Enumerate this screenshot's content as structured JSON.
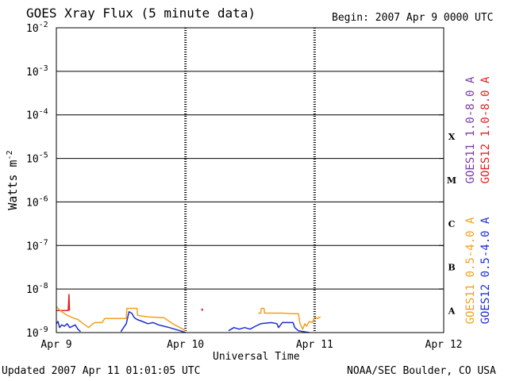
{
  "header": {
    "title": "GOES Xray Flux (5 minute data)",
    "begin": "Begin:  2007 Apr 9 0000 UTC"
  },
  "footer": {
    "updated": "Updated 2007 Apr 11 01:01:05 UTC",
    "credit": "NOAA/SEC Boulder, CO USA"
  },
  "colors": {
    "goes11_long": "#7a3aa8",
    "goes12_long": "#e02020",
    "goes11_short": "#f0a020",
    "goes12_short": "#1c2ed0",
    "frame": "#000000"
  },
  "chart_data": {
    "type": "line",
    "title": "GOES Xray Flux (5 minute data)",
    "xlabel": "Universal Time",
    "ylabel": "Watts m",
    "ylabel_sup": "-2",
    "yscale": "log",
    "ylim": [
      1e-09,
      0.01
    ],
    "xlim": [
      0,
      72
    ],
    "x_unit": "hours since 2007 Apr 9 0000 UTC",
    "x_ticks": [
      {
        "x": 0,
        "label": "Apr 9"
      },
      {
        "x": 24,
        "label": "Apr 10"
      },
      {
        "x": 48,
        "label": "Apr 11"
      },
      {
        "x": 72,
        "label": "Apr 12"
      }
    ],
    "y_ticks": [
      {
        "exp": -2,
        "label": "10",
        "sup": "-2"
      },
      {
        "exp": -3,
        "label": "10",
        "sup": "-3"
      },
      {
        "exp": -4,
        "label": "10",
        "sup": "-4"
      },
      {
        "exp": -5,
        "label": "10",
        "sup": "-5"
      },
      {
        "exp": -6,
        "label": "10",
        "sup": "-6"
      },
      {
        "exp": -7,
        "label": "10",
        "sup": "-7"
      },
      {
        "exp": -8,
        "label": "10",
        "sup": "-8"
      },
      {
        "exp": -9,
        "label": "10",
        "sup": "-9"
      }
    ],
    "flare_classes": [
      {
        "label": "X",
        "exp": -4
      },
      {
        "label": "M",
        "exp": -5
      },
      {
        "label": "C",
        "exp": -6
      },
      {
        "label": "B",
        "exp": -7
      },
      {
        "label": "A",
        "exp": -8
      }
    ],
    "grid": "horizontal lines at each decade; dotted vertical lines at day boundaries",
    "series": [
      {
        "name": "GOES11 1.0-8.0 A",
        "color": "#7a3aa8",
        "points": []
      },
      {
        "name": "GOES12 1.0-8.0 A",
        "color": "#e02020",
        "points": [
          [
            0,
            3.2e-09
          ],
          [
            2.2,
            3.2e-09
          ],
          [
            2.35,
            7.5e-09
          ],
          [
            2.45,
            3.2e-09
          ],
          [
            27,
            3.2e-09
          ],
          [
            27.1,
            3.5e-09
          ],
          [
            27.2,
            3.2e-09
          ],
          [
            49.1,
            3.2e-09
          ]
        ]
      },
      {
        "name": "GOES11 0.5-4.0 A",
        "color": "#f0a020",
        "points": [
          [
            0,
            4e-09
          ],
          [
            0.4,
            3.5e-09
          ],
          [
            1.0,
            3e-09
          ],
          [
            2.0,
            2.5e-09
          ],
          [
            3.0,
            2.2e-09
          ],
          [
            4.0,
            2e-09
          ],
          [
            5.0,
            1.6e-09
          ],
          [
            6.0,
            1.3e-09
          ],
          [
            6.8,
            1.6e-09
          ],
          [
            7.2,
            1.7e-09
          ],
          [
            8.5,
            1.7e-09
          ],
          [
            9.0,
            2.1e-09
          ],
          [
            13.0,
            2.1e-09
          ],
          [
            13.1,
            3.6e-09
          ],
          [
            15.0,
            3.6e-09
          ],
          [
            15.1,
            2.5e-09
          ],
          [
            17.0,
            2.3e-09
          ],
          [
            20.0,
            2.2e-09
          ],
          [
            21.0,
            1.8e-09
          ],
          [
            22.0,
            1.5e-09
          ],
          [
            23.0,
            1.3e-09
          ],
          [
            24.0,
            1.1e-09
          ],
          [
            37.5,
            2.8e-09
          ],
          [
            38.0,
            2.8e-09
          ],
          [
            38.1,
            3.6e-09
          ],
          [
            38.6,
            3.6e-09
          ],
          [
            38.7,
            2.8e-09
          ],
          [
            42.0,
            2.8e-09
          ],
          [
            44.0,
            2.7e-09
          ],
          [
            45.0,
            2.7e-09
          ],
          [
            45.3,
            1.6e-09
          ],
          [
            45.8,
            1.2e-09
          ],
          [
            46.2,
            1.6e-09
          ],
          [
            46.5,
            1.4e-09
          ],
          [
            47.0,
            1.8e-09
          ],
          [
            47.6,
            1.7e-09
          ],
          [
            48.0,
            2.3e-09
          ],
          [
            48.5,
            2.1e-09
          ],
          [
            49.1,
            2.3e-09
          ]
        ]
      },
      {
        "name": "GOES12 0.5-4.0 A",
        "color": "#1c2ed0",
        "points": [
          [
            0,
            1.6e-09
          ],
          [
            0.3,
            1.8e-09
          ],
          [
            0.6,
            1.3e-09
          ],
          [
            1.0,
            1.5e-09
          ],
          [
            1.5,
            1.4e-09
          ],
          [
            2.0,
            1.6e-09
          ],
          [
            2.5,
            1.3e-09
          ],
          [
            3.5,
            1.5e-09
          ],
          [
            4.0,
            1.2e-09
          ],
          [
            4.5,
            1.05e-09
          ],
          [
            12.0,
            1.05e-09
          ],
          [
            12.5,
            1.3e-09
          ],
          [
            13.0,
            1.6e-09
          ],
          [
            13.5,
            3e-09
          ],
          [
            14.0,
            2.8e-09
          ],
          [
            14.5,
            2.2e-09
          ],
          [
            15.0,
            2e-09
          ],
          [
            16.0,
            1.8e-09
          ],
          [
            17.0,
            1.6e-09
          ],
          [
            18.0,
            1.7e-09
          ],
          [
            19.0,
            1.5e-09
          ],
          [
            20.0,
            1.4e-09
          ],
          [
            21.0,
            1.3e-09
          ],
          [
            22.0,
            1.2e-09
          ],
          [
            23.0,
            1.1e-09
          ],
          [
            24.0,
            1e-09
          ],
          [
            32.0,
            1.1e-09
          ],
          [
            33.0,
            1.3e-09
          ],
          [
            34.0,
            1.2e-09
          ],
          [
            35.0,
            1.3e-09
          ],
          [
            36.0,
            1.2e-09
          ],
          [
            37.0,
            1.4e-09
          ],
          [
            38.0,
            1.6e-09
          ],
          [
            40.0,
            1.7e-09
          ],
          [
            41.0,
            1.6e-09
          ],
          [
            41.3,
            1.3e-09
          ],
          [
            42.0,
            1.7e-09
          ],
          [
            44.0,
            1.7e-09
          ],
          [
            44.3,
            1.3e-09
          ],
          [
            45.0,
            1.1e-09
          ],
          [
            47.0,
            1e-09
          ]
        ]
      }
    ],
    "legend": {
      "placement": "right, vertical",
      "columns": [
        [
          "GOES11 1.0-8.0 A",
          "GOES12 1.0-8.0 A"
        ],
        [
          "GOES11 0.5-4.0 A",
          "GOES12 0.5-4.0 A"
        ]
      ]
    }
  }
}
